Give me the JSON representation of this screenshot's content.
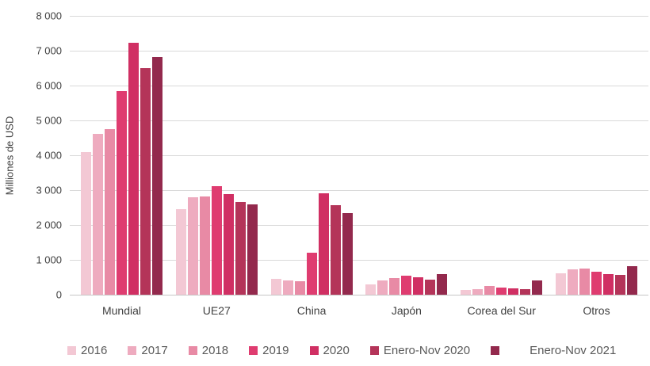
{
  "chart_data": {
    "type": "bar",
    "title": "",
    "ylabel": "Milliones de USD",
    "xlabel": "",
    "ylim": [
      0,
      8000
    ],
    "ytick_step": 1000,
    "ytick_labels": [
      "0",
      "1 000",
      "2 000",
      "3 000",
      "4 000",
      "5 000",
      "6 000",
      "7 000",
      "8 000"
    ],
    "grid": true,
    "legend_position": "bottom",
    "categories": [
      "Mundial",
      "UE27",
      "China",
      "Japón",
      "Corea del Sur",
      "Otros"
    ],
    "series": [
      {
        "name": "2016",
        "color": "#f3c8d4",
        "values": [
          4080,
          2450,
          460,
          300,
          130,
          620
        ]
      },
      {
        "name": "2017",
        "color": "#eeabbf",
        "values": [
          4620,
          2790,
          400,
          410,
          160,
          730
        ]
      },
      {
        "name": "2018",
        "color": "#e88aa5",
        "values": [
          4760,
          2820,
          380,
          480,
          250,
          750
        ]
      },
      {
        "name": "2019",
        "color": "#df3c70",
        "values": [
          5840,
          3110,
          1200,
          540,
          210,
          660
        ]
      },
      {
        "name": "2020",
        "color": "#d02f63",
        "values": [
          7230,
          2880,
          2900,
          490,
          180,
          600
        ]
      },
      {
        "name": "Enero-Nov 2020",
        "color": "#b43459",
        "values": [
          6510,
          2650,
          2560,
          440,
          170,
          560
        ]
      },
      {
        "name": "Enero-Nov 2021",
        "color": "#93294d",
        "values": [
          6820,
          2600,
          2330,
          590,
          400,
          820
        ]
      }
    ]
  }
}
